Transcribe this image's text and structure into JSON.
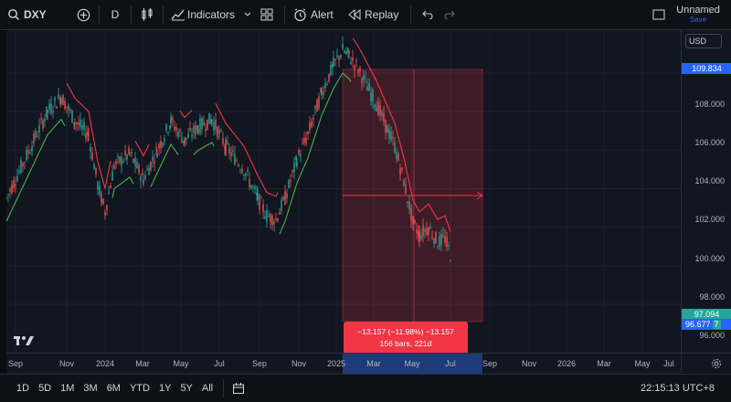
{
  "topbar": {
    "symbol": "DXY",
    "interval": "D",
    "indicators": "Indicators",
    "alert": "Alert",
    "replay": "Replay",
    "layout_name": "Unnamed",
    "save": "Save"
  },
  "currency": "USD",
  "price_axis": {
    "labels": [
      "108.000",
      "106.000",
      "104.000",
      "102.000",
      "100.000",
      "98.000",
      "96.000"
    ],
    "current_high": "109.834",
    "last_price": "97.094",
    "last_price_2": "96.677",
    "last_suffix": "7"
  },
  "time_axis": {
    "labels": [
      "Sep",
      "Nov",
      "2024",
      "Mar",
      "May",
      "Jul",
      "Sep",
      "Nov",
      "2025",
      "Mar",
      "May",
      "Jul",
      "Sep",
      "Nov",
      "2026",
      "Mar",
      "May",
      "Jul"
    ]
  },
  "measure": {
    "line1": "−13.157 (−11.98%) −13.157",
    "line2": "156 bars, 221d"
  },
  "bottombar": {
    "ranges": [
      "1D",
      "5D",
      "1M",
      "3M",
      "6M",
      "YTD",
      "1Y",
      "5Y",
      "All"
    ],
    "clock": "22:15:13 UTC+8"
  },
  "colors": {
    "bull": "#26a69a",
    "bear": "#ef5350",
    "supertrend_up": "#4caf50",
    "supertrend_down": "#f23645",
    "measure_fill": "#f2364533",
    "accent": "#2962ff"
  },
  "logo_text": "TV"
}
